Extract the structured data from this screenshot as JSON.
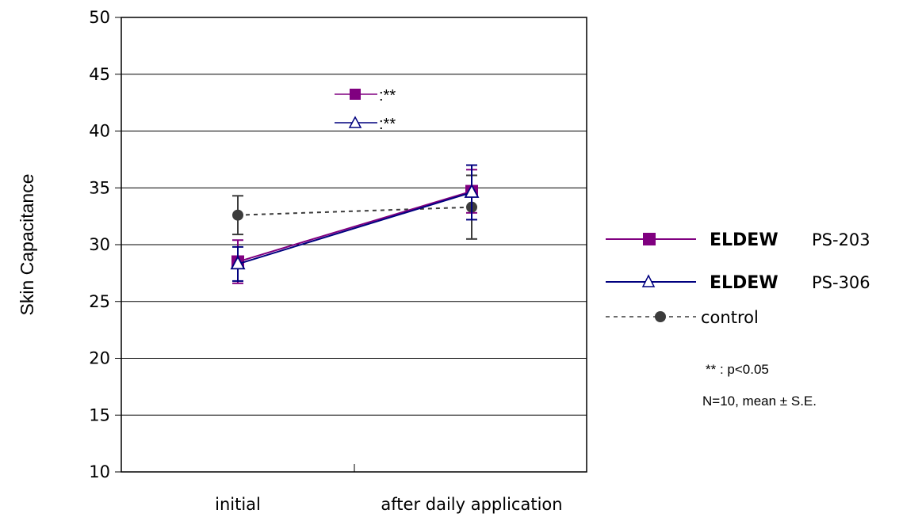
{
  "chart_data": {
    "type": "line",
    "ylabel": "Skin Capacitance",
    "ylim": [
      10,
      50
    ],
    "yticks": [
      10,
      15,
      20,
      25,
      30,
      35,
      40,
      45,
      50
    ],
    "categories": [
      "initial",
      "after daily application"
    ],
    "grid": true,
    "legend_position": "right",
    "series": [
      {
        "brand": "ELDEW",
        "code": "PS-203",
        "color": "#800080",
        "marker": "square",
        "dashed": false,
        "values": [
          28.5,
          34.7
        ],
        "errors": [
          1.9,
          1.9
        ]
      },
      {
        "brand": "ELDEW",
        "code": "PS-306",
        "color": "#00007f",
        "marker": "triangle-open",
        "dashed": false,
        "values": [
          28.3,
          34.6
        ],
        "errors": [
          1.5,
          2.4
        ]
      },
      {
        "name": "control",
        "color": "#3c3c3c",
        "marker": "circle",
        "dashed": true,
        "values": [
          32.6,
          33.3
        ],
        "errors": [
          1.7,
          2.8
        ]
      }
    ],
    "significance_labels": [
      ":**",
      ":**"
    ],
    "notes": [
      "** : p<0.05",
      "N=10, mean ± S.E."
    ]
  }
}
